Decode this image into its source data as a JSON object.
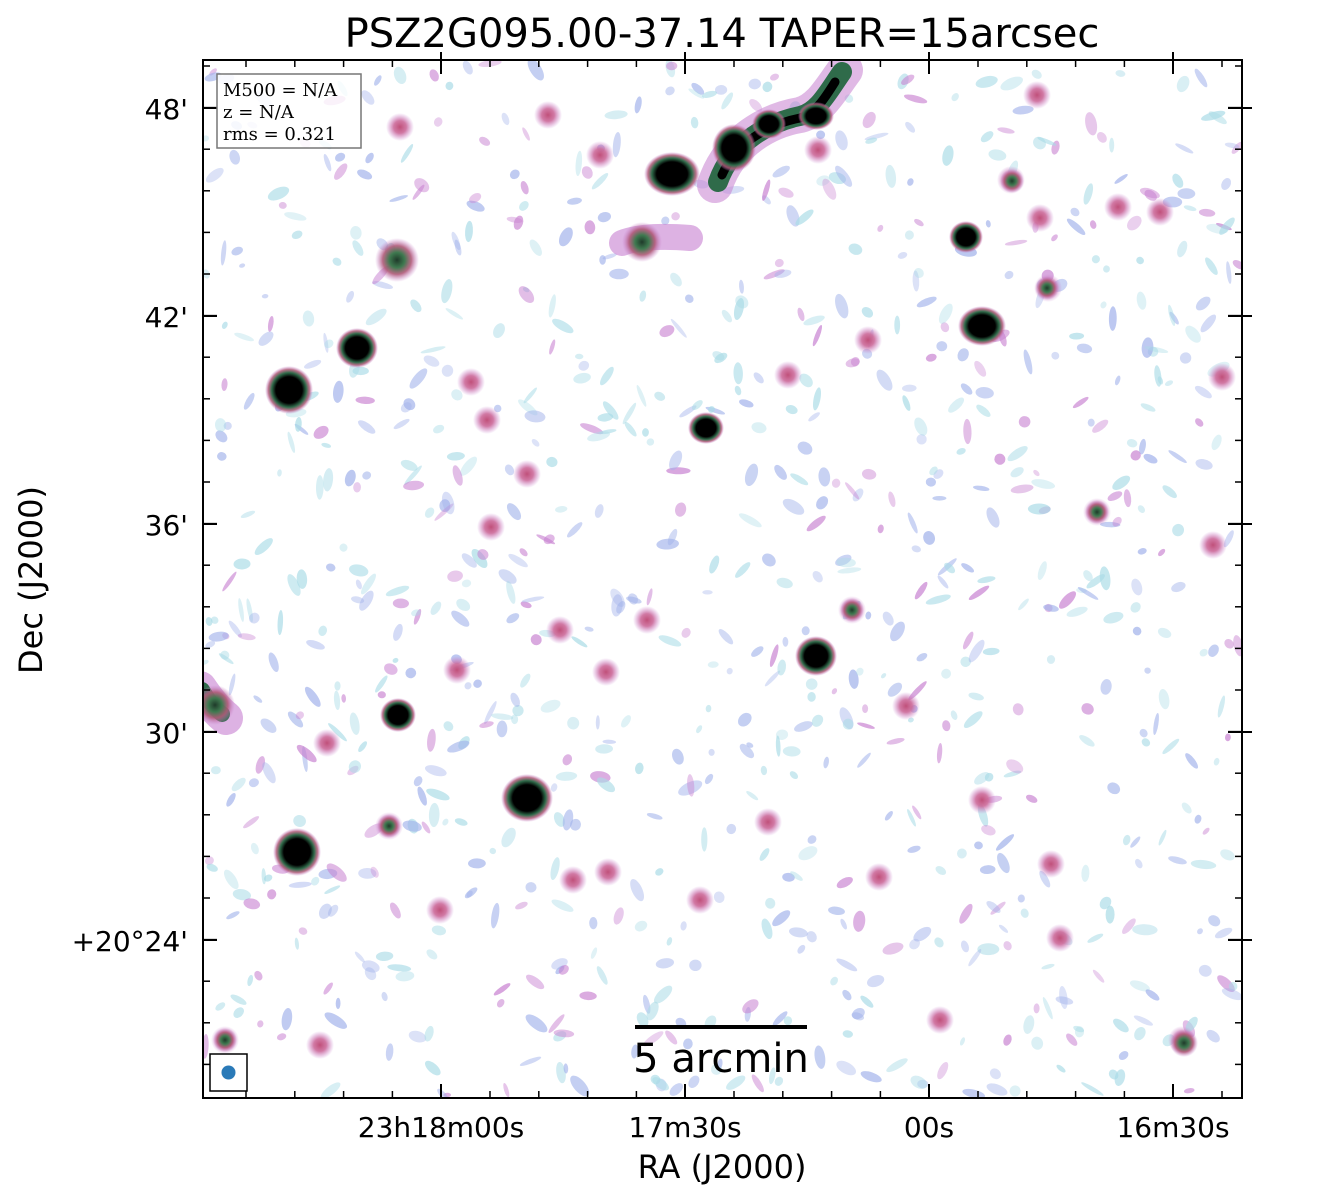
{
  "title": "PSZ2G095.00-37.14 TAPER=15arcsec",
  "axes": {
    "xlabel": "RA (J2000)",
    "ylabel": "Dec (J2000)",
    "x_ticks": [
      "23h18m00s",
      "17m30s",
      "00s",
      "16m30s"
    ],
    "y_ticks": [
      "48'",
      "42'",
      "36'",
      "30'",
      "+20°24'"
    ]
  },
  "info_box": {
    "line1": "M500 = N/A",
    "line2": "z = N/A",
    "line3": "rms = 0.321"
  },
  "scale_bar": {
    "label": "5 arcmin"
  },
  "colors": {
    "source_core": "#000000",
    "source_mid": "#2f6b4a",
    "source_edge": "#b05a78",
    "noise_pink": "#c77fd0",
    "noise_blue": "#9fb0ea",
    "noise_cyan": "#a9dbe6",
    "beam": "#2a7ab8"
  }
}
